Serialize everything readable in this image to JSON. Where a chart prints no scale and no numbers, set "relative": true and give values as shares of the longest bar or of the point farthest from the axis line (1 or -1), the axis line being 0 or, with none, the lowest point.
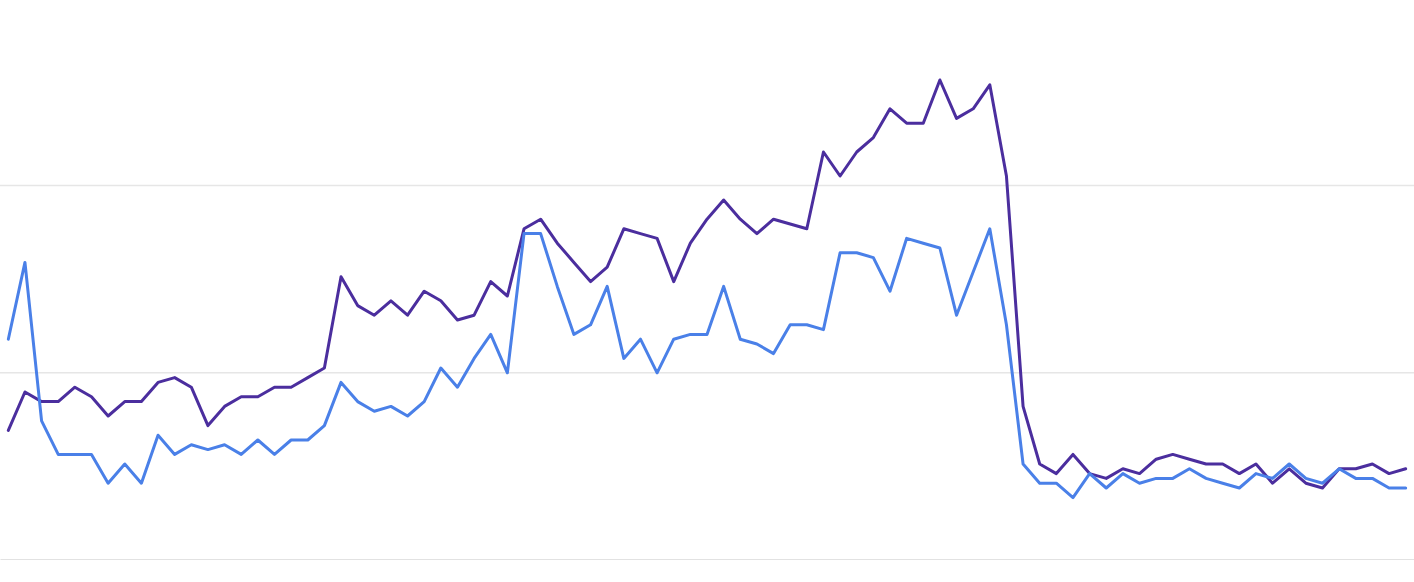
{
  "chart_data": {
    "type": "line",
    "relative": true,
    "categories": [
      null,
      null,
      null,
      null,
      null,
      null,
      null,
      null,
      null,
      null,
      null,
      null,
      null,
      null,
      null,
      null,
      null,
      null,
      null,
      null,
      null,
      null,
      null,
      null,
      null,
      null,
      null,
      null,
      null,
      null,
      null,
      null,
      null,
      null,
      null,
      null,
      null,
      null,
      null,
      null,
      null,
      null,
      null,
      null,
      null,
      null,
      null,
      null,
      null,
      null,
      null,
      null,
      null,
      null,
      null,
      null,
      null,
      null,
      null,
      null,
      null,
      null,
      null,
      null,
      null,
      null,
      null,
      null,
      null,
      null,
      null,
      null,
      null,
      null,
      null,
      null,
      null,
      null,
      null,
      null,
      null,
      null,
      null,
      null,
      null
    ],
    "series": [
      {
        "color": "#4b2e9e",
        "values": [
          0.27,
          0.35,
          0.33,
          0.33,
          0.36,
          0.34,
          0.3,
          0.33,
          0.33,
          0.37,
          0.38,
          0.36,
          0.28,
          0.32,
          0.34,
          0.34,
          0.36,
          0.36,
          0.38,
          0.4,
          0.59,
          0.53,
          0.51,
          0.54,
          0.51,
          0.56,
          0.54,
          0.5,
          0.51,
          0.58,
          0.55,
          0.69,
          0.71,
          0.66,
          0.62,
          0.58,
          0.61,
          0.69,
          0.68,
          0.67,
          0.58,
          0.66,
          0.71,
          0.75,
          0.71,
          0.68,
          0.71,
          0.7,
          0.69,
          0.85,
          0.8,
          0.85,
          0.88,
          0.94,
          0.91,
          0.91,
          1.0,
          0.92,
          0.94,
          0.99,
          0.8,
          0.32,
          0.2,
          0.18,
          0.22,
          0.18,
          0.17,
          0.19,
          0.18,
          0.21,
          0.22,
          0.21,
          0.2,
          0.2,
          0.18,
          0.2,
          0.16,
          0.19,
          0.16,
          0.15,
          0.19,
          0.19,
          0.2,
          0.18,
          0.19
        ]
      },
      {
        "color": "#4a80e8",
        "values": [
          0.46,
          0.62,
          0.29,
          0.22,
          0.22,
          0.22,
          0.16,
          0.2,
          0.16,
          0.26,
          0.22,
          0.24,
          0.23,
          0.24,
          0.22,
          0.25,
          0.22,
          0.25,
          0.25,
          0.28,
          0.37,
          0.33,
          0.31,
          0.32,
          0.3,
          0.33,
          0.4,
          0.36,
          0.42,
          0.47,
          0.39,
          0.68,
          0.68,
          0.57,
          0.47,
          0.49,
          0.57,
          0.42,
          0.46,
          0.39,
          0.46,
          0.47,
          0.47,
          0.57,
          0.46,
          0.45,
          0.43,
          0.49,
          0.49,
          0.48,
          0.64,
          0.64,
          0.63,
          0.56,
          0.67,
          0.66,
          0.65,
          0.51,
          0.6,
          0.69,
          0.49,
          0.2,
          0.16,
          0.16,
          0.13,
          0.18,
          0.15,
          0.18,
          0.16,
          0.17,
          0.17,
          0.19,
          0.17,
          0.16,
          0.15,
          0.18,
          0.17,
          0.2,
          0.17,
          0.16,
          0.19,
          0.17,
          0.17,
          0.15,
          0.15
        ]
      }
    ],
    "ref_lines": [
      {
        "axis": "y",
        "value": 0.39,
        "color": "#e6e6e6"
      },
      {
        "axis": "y",
        "value": 0.78,
        "color": "#e6e6e6"
      }
    ]
  }
}
